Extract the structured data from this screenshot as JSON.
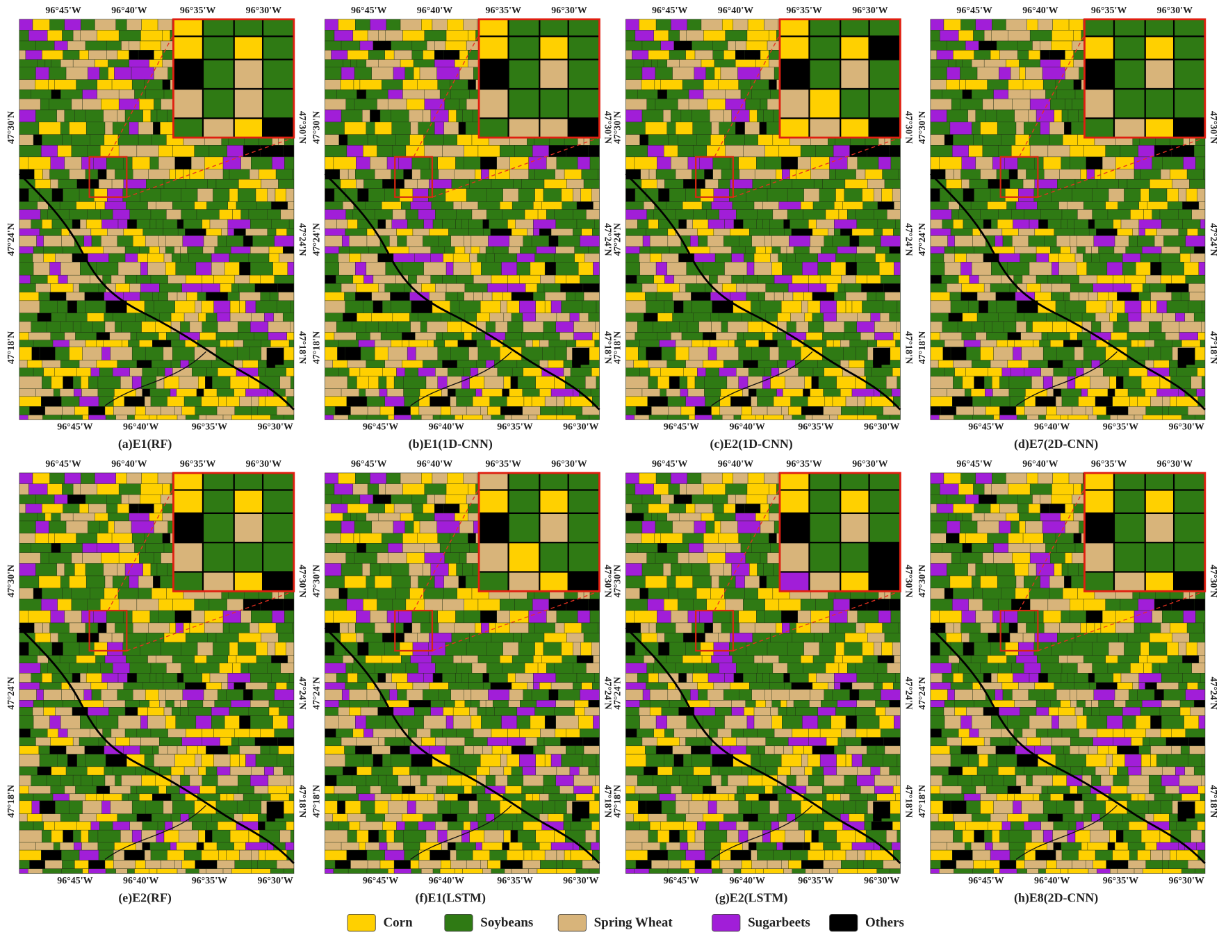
{
  "panels": [
    {
      "caption": "(a)E1(RF)"
    },
    {
      "caption": "(b)E1(1D-CNN)"
    },
    {
      "caption": "(c)E2(1D-CNN)"
    },
    {
      "caption": "(d)E7(2D-CNN)"
    },
    {
      "caption": "(e)E2(RF)"
    },
    {
      "caption": "(f)E1(LSTM)"
    },
    {
      "caption": "(g)E2(LSTM)"
    },
    {
      "caption": "(h)E8(2D-CNN)"
    }
  ],
  "x_labels": [
    "96°45'W",
    "96°40'W",
    "96°35'W",
    "96°30'W"
  ],
  "y_labels": [
    "47°30'N",
    "47°24'N",
    "47°18'N"
  ],
  "legend": [
    {
      "name": "Corn",
      "color": "#ffd000"
    },
    {
      "name": "Soybeans",
      "color": "#2f7a14"
    },
    {
      "name": "Spring Wheat",
      "color": "#d8b47a"
    },
    {
      "name": "Sugarbeets",
      "color": "#a11ed8"
    },
    {
      "name": "Others",
      "color": "#000000"
    }
  ]
}
